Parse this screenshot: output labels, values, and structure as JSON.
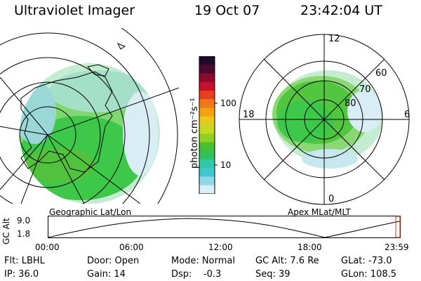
{
  "header": {
    "instrument": "Ultraviolet Imager",
    "date": "19 Oct 07",
    "time": "23:42:04 UT"
  },
  "left_panel": {
    "caption": "Geographic Lat/Lon"
  },
  "right_panel": {
    "caption": "Apex MLat/MLT",
    "mlt_labels": {
      "top": "12",
      "bottom": "0",
      "left": "18",
      "right": "6"
    },
    "lat_labels": [
      "60",
      "70",
      "80"
    ]
  },
  "colorbar": {
    "unit_label": "photon cm⁻²s⁻¹",
    "ticks": [
      "100",
      "10"
    ],
    "colors": [
      "#1e0a2a",
      "#4a0a30",
      "#8c0a2c",
      "#c8102e",
      "#e8401a",
      "#f07818",
      "#f4a010",
      "#e8c81a",
      "#c8d820",
      "#90d020",
      "#48c030",
      "#30c060",
      "#30c8a8",
      "#40c8d0",
      "#90d8e8",
      "#d8eef8"
    ]
  },
  "timeline": {
    "axis_label": "GC Alt",
    "y_ticks": [
      "9.0",
      "1.8"
    ],
    "x_ticks": [
      "00:00",
      "06:00",
      "12:00",
      "18:00",
      "23:59"
    ]
  },
  "info": {
    "row1": [
      {
        "label": "Flt: LBHL"
      },
      {
        "label": "Door: Open"
      },
      {
        "label": "Mode: Normal"
      },
      {
        "label": "GC Alt: 7.6 Re"
      },
      {
        "label": "GLat: -73.0"
      }
    ],
    "row2": [
      {
        "label": "IP: 36.0"
      },
      {
        "label": "Gain: 14"
      },
      {
        "label": "Dsp:    -0.3"
      },
      {
        "label": "Seq: 39"
      },
      {
        "label": "GLon: 108.5"
      }
    ]
  }
}
